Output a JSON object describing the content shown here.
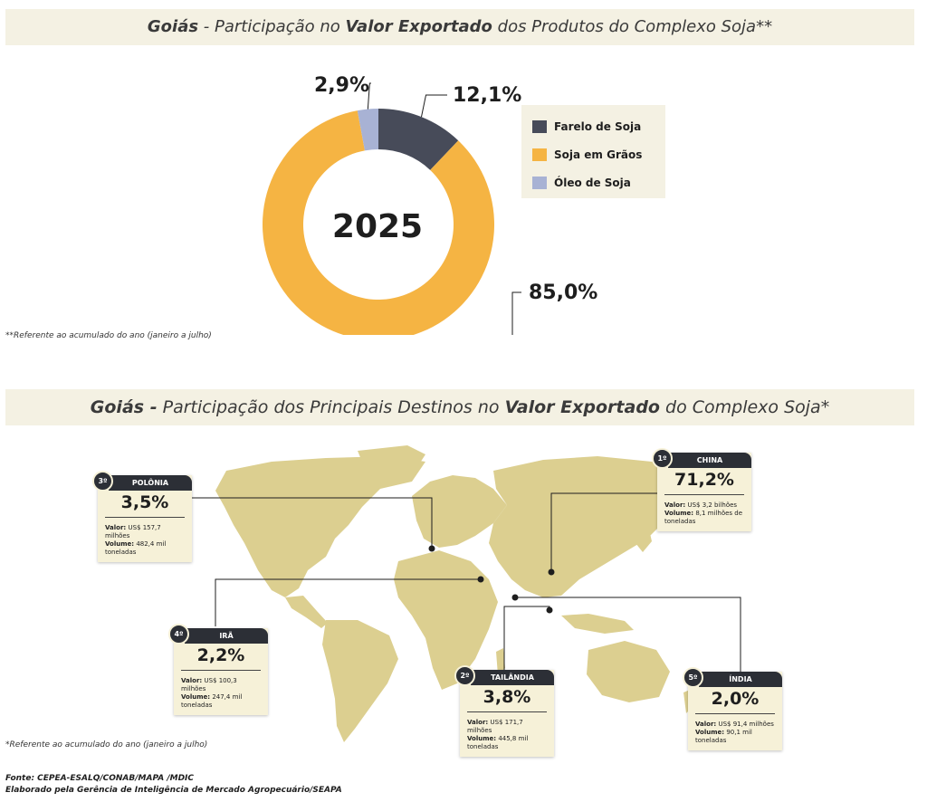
{
  "chart_data": [
    {
      "type": "pie",
      "title_parts": [
        {
          "text": "Goiás",
          "bold": true
        },
        {
          "text": " - Participação no ",
          "bold": false
        },
        {
          "text": "Valor Exportado",
          "bold": true
        },
        {
          "text": " dos Produtos do Complexo Soja**",
          "bold": false
        }
      ],
      "center_label": "2025",
      "slices": [
        {
          "name": "Farelo de Soja",
          "value": 12.1,
          "label": "12,1%",
          "color": "#474b59"
        },
        {
          "name": "Soja em Grãos",
          "value": 85.0,
          "label": "85,0%",
          "color": "#f5b443"
        },
        {
          "name": "Óleo de Soja",
          "value": 2.9,
          "label": "2,9%",
          "color": "#a8b2d4"
        }
      ],
      "legend_placement": "right",
      "note": "**Referente ao acumulado do ano (janeiro a julho)"
    },
    {
      "type": "map",
      "title_parts": [
        {
          "text": "Goiás -",
          "bold": true
        },
        {
          "text": " Participação dos Principais Destinos no ",
          "bold": false
        },
        {
          "text": "Valor Exportado",
          "bold": true
        },
        {
          "text": " do Complexo Soja*",
          "bold": false
        }
      ],
      "destinations": [
        {
          "rank": "1º",
          "country": "CHINA",
          "share": "71,2%",
          "valor_label": "Valor:",
          "valor": "US$ 3,2 bilhões",
          "volume_label": "Volume:",
          "volume": "8,1 milhões de toneladas"
        },
        {
          "rank": "2º",
          "country": "TAILÂNDIA",
          "share": "3,8%",
          "valor_label": "Valor:",
          "valor": "US$ 171,7 milhões",
          "volume_label": "Volume:",
          "volume": "445,8 mil toneladas"
        },
        {
          "rank": "3º",
          "country": "POLÔNIA",
          "share": "3,5%",
          "valor_label": "Valor:",
          "valor": "US$ 157,7 milhões",
          "volume_label": "Volume:",
          "volume": "482,4 mil toneladas"
        },
        {
          "rank": "4º",
          "country": "IRÃ",
          "share": "2,2%",
          "valor_label": "Valor:",
          "valor": "US$ 100,3 milhões",
          "volume_label": "Volume:",
          "volume": "247,4 mil toneladas"
        },
        {
          "rank": "5º",
          "country": "ÍNDIA",
          "share": "2,0%",
          "valor_label": "Valor:",
          "valor": "US$ 91,4 milhões",
          "volume_label": "Volume:",
          "volume": "90,1 mil toneladas"
        }
      ],
      "map_color": "#dccf90",
      "note": "*Referente ao acumulado do ano (janeiro a julho)"
    }
  ],
  "footer": {
    "source": "Fonte: CEPEA-ESALQ/CONAB/MAPA /MDIC",
    "credit": "Elaborado pela Gerência de Inteligência de Mercado Agropecuário/SEAPA"
  }
}
